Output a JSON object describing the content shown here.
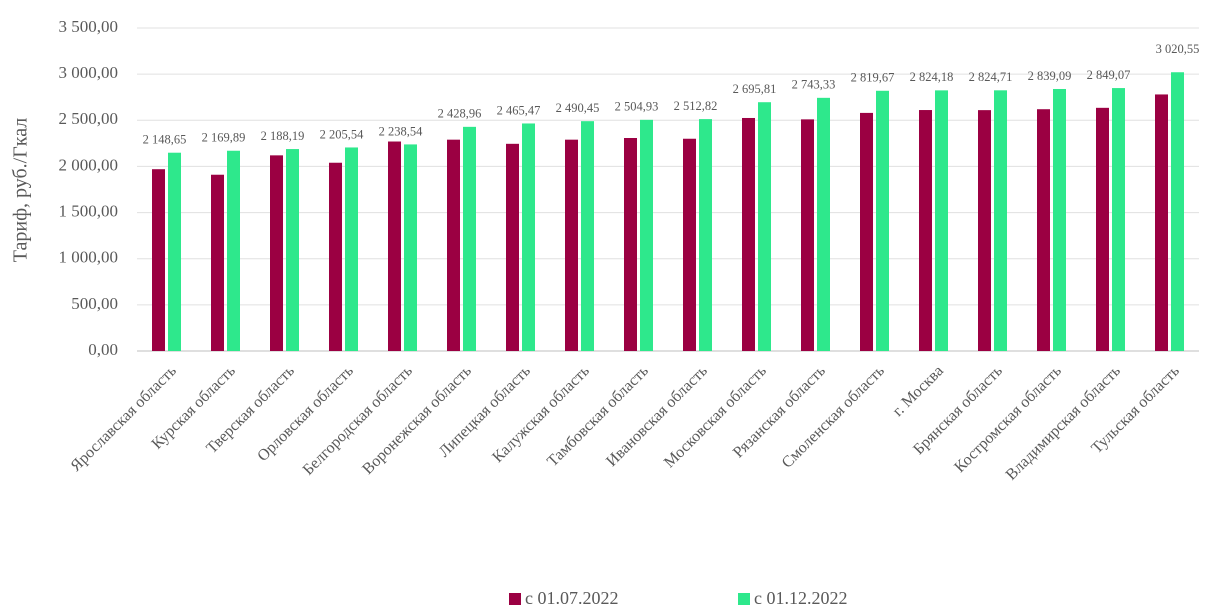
{
  "chart_data": {
    "type": "bar",
    "y_label": "Тариф, руб./Гкал",
    "categories": [
      "Ярославская область",
      "Курская область",
      "Тверская область",
      "Орловская область",
      "Белгородская область",
      "Воронежская область",
      "Липецкая область",
      "Калужская область",
      "Тамбовская область",
      "Ивановская область",
      "Московская область",
      "Рязанская область",
      "Смоленская область",
      "г. Москва",
      "Брянская область",
      "Костромская область",
      "Владимирская область",
      "Тульская область"
    ],
    "series": [
      {
        "name": "с 01.07.2022",
        "color": "#9b0042",
        "values": [
          1970,
          1910,
          2120,
          2040,
          2270,
          2290,
          2245,
          2290,
          2308,
          2300,
          2525,
          2510,
          2580,
          2611,
          2610,
          2620,
          2635,
          2780
        ]
      },
      {
        "name": "с 01.12.2022",
        "color": "#2ee88c",
        "values": [
          2148.65,
          2169.89,
          2188.19,
          2205.54,
          2238.54,
          2428.96,
          2465.47,
          2490.45,
          2504.93,
          2512.82,
          2695.81,
          2743.33,
          2819.67,
          2824.18,
          2824.71,
          2839.09,
          2849.07,
          3020.55
        ],
        "value_labels": [
          "2 148,65",
          "2 169,89",
          "2 188,19",
          "2 205,54",
          "2 238,54",
          "2 428,96",
          "2 465,47",
          "2 490,45",
          "2 504,93",
          "2 512,82",
          "2 695,81",
          "2 743,33",
          "2 819,67",
          "2 824,18",
          "2 824,71",
          "2 839,09",
          "2 849,07",
          "3 020,55"
        ]
      }
    ],
    "ylim": [
      0,
      3500
    ],
    "yticks": [
      {
        "value": 0,
        "label": "0,00"
      },
      {
        "value": 500,
        "label": "500,00"
      },
      {
        "value": 1000,
        "label": "1 000,00"
      },
      {
        "value": 1500,
        "label": "1 500,00"
      },
      {
        "value": 2000,
        "label": "2 000,00"
      },
      {
        "value": 2500,
        "label": "2 500,00"
      },
      {
        "value": 3000,
        "label": "3 000,00"
      },
      {
        "value": 3500,
        "label": "3 500,00"
      }
    ],
    "grid": true
  }
}
